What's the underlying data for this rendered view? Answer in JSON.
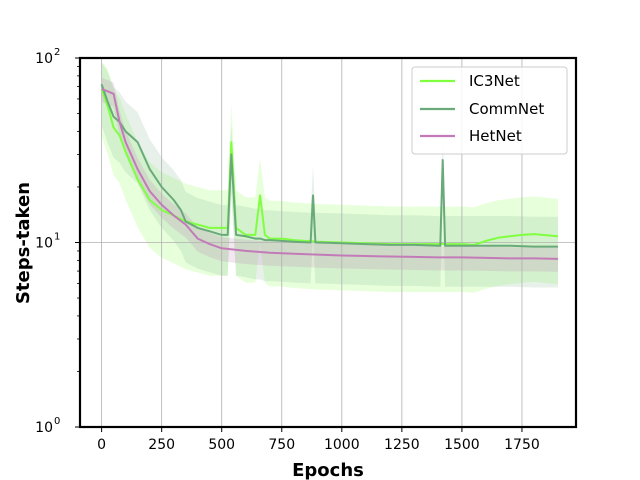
{
  "chart_data": {
    "type": "line",
    "title": "",
    "xlabel": "Epochs",
    "ylabel": "Steps-taken",
    "xlim": [
      -90,
      1975
    ],
    "ylim": [
      1,
      100
    ],
    "yscale": "log",
    "x_ticks": [
      0,
      250,
      500,
      750,
      1000,
      1250,
      1500,
      1750
    ],
    "y_ticks": [
      {
        "value": 1,
        "base": "10",
        "exp": "0"
      },
      {
        "value": 10,
        "base": "10",
        "exp": "1"
      },
      {
        "value": 100,
        "base": "10",
        "exp": "2"
      }
    ],
    "grid": true,
    "legend_position": "top-right",
    "series": [
      {
        "name": "IC3Net",
        "color": "#7fff3f",
        "x": [
          0,
          25,
          50,
          75,
          100,
          150,
          200,
          250,
          300,
          350,
          400,
          450,
          500,
          525,
          540,
          560,
          600,
          640,
          660,
          680,
          700,
          750,
          800,
          900,
          1000,
          1100,
          1200,
          1300,
          1400,
          1500,
          1550,
          1600,
          1650,
          1700,
          1750,
          1800,
          1900
        ],
        "values": [
          68,
          55,
          42,
          38,
          31,
          22,
          17,
          15,
          14,
          13,
          12.5,
          12,
          12,
          12,
          35,
          12,
          11,
          11,
          18,
          11,
          10.5,
          10.5,
          10.3,
          10.1,
          10,
          9.9,
          9.8,
          9.8,
          9.8,
          9.8,
          9.7,
          10.2,
          10.6,
          10.8,
          11,
          11.1,
          10.8
        ]
      },
      {
        "name": "CommNet",
        "color": "#6aaa7a",
        "x": [
          0,
          25,
          50,
          75,
          100,
          150,
          200,
          250,
          300,
          330,
          350,
          400,
          450,
          500,
          525,
          540,
          560,
          600,
          640,
          660,
          680,
          700,
          750,
          800,
          870,
          880,
          890,
          900,
          1000,
          1100,
          1200,
          1300,
          1400,
          1410,
          1420,
          1430,
          1500,
          1600,
          1700,
          1800,
          1900
        ],
        "values": [
          72,
          58,
          48,
          45,
          40,
          35,
          25,
          20,
          17,
          15,
          13,
          12,
          11.5,
          11,
          11,
          30,
          11,
          10.8,
          10.5,
          10.5,
          10.3,
          10.3,
          10.2,
          10.1,
          10,
          18,
          10,
          10,
          9.9,
          9.8,
          9.7,
          9.7,
          9.6,
          9.6,
          28,
          9.6,
          9.6,
          9.6,
          9.6,
          9.5,
          9.5
        ]
      },
      {
        "name": "HetNet",
        "color": "#c27bb8",
        "x": [
          0,
          25,
          50,
          75,
          100,
          150,
          200,
          250,
          300,
          350,
          400,
          450,
          500,
          600,
          700,
          800,
          900,
          1000,
          1100,
          1200,
          1300,
          1400,
          1500,
          1600,
          1700,
          1800,
          1900
        ],
        "values": [
          68,
          66,
          64,
          45,
          35,
          25,
          19,
          16,
          14,
          12.5,
          10.5,
          9.8,
          9.3,
          9,
          8.8,
          8.7,
          8.6,
          8.5,
          8.45,
          8.4,
          8.35,
          8.3,
          8.3,
          8.25,
          8.2,
          8.2,
          8.15
        ]
      }
    ]
  }
}
